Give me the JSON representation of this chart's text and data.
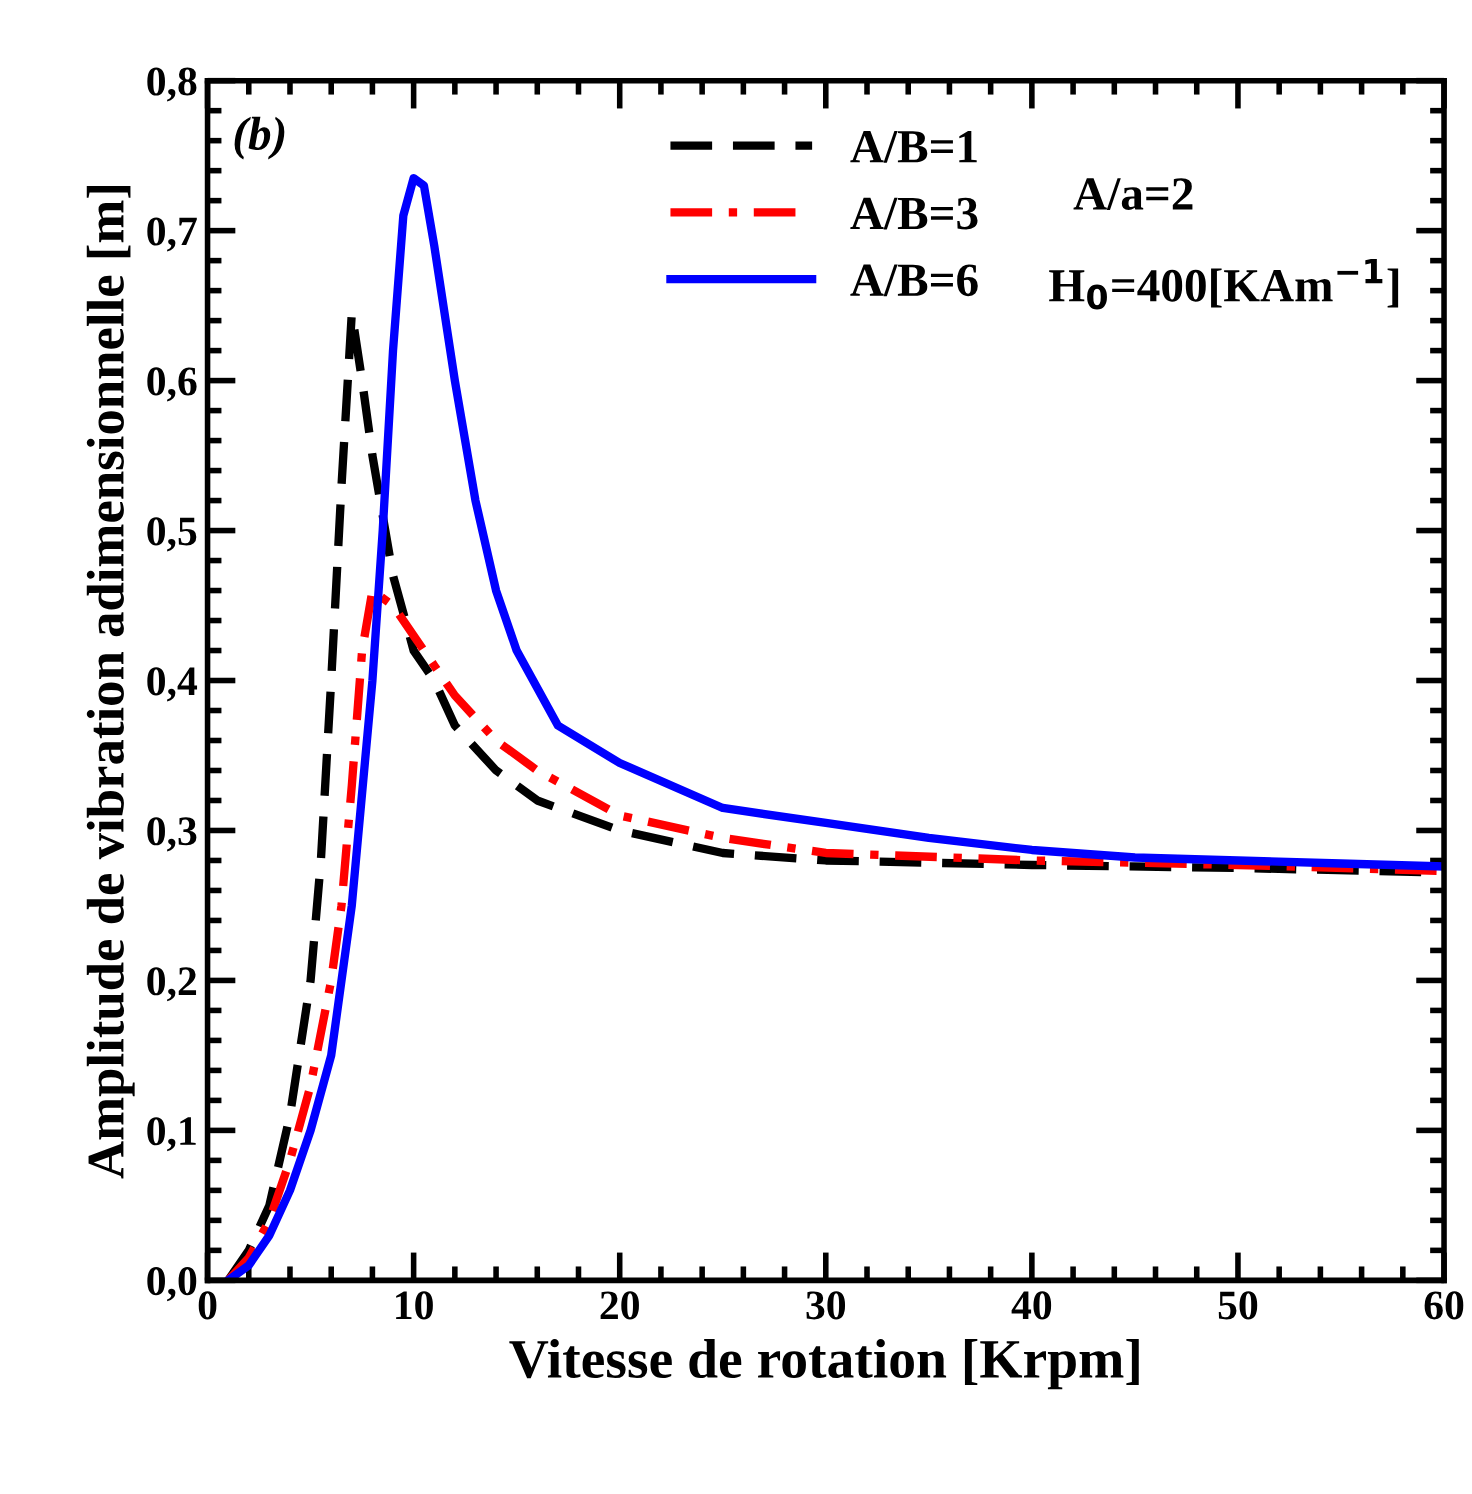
{
  "chart_data": {
    "type": "line",
    "xlabel": "Vitesse de rotation [Krpm]",
    "ylabel": "Amplitude de vibration adimensionnelle [m]",
    "annotations": [
      "(b)",
      "A/a=2",
      "H$_{0}$=400[KAm$^{−1}$]"
    ],
    "xlim": [
      0,
      60
    ],
    "xticks": [
      0,
      10,
      20,
      30,
      40,
      50,
      60
    ],
    "ylim": [
      0,
      0.8
    ],
    "yticks": [
      {
        "value": 0,
        "label": "0,0"
      },
      {
        "value": 0.1,
        "label": "0,1"
      },
      {
        "value": 0.2,
        "label": "0,2"
      },
      {
        "value": 0.3,
        "label": "0,3"
      },
      {
        "value": 0.4,
        "label": "0,4"
      },
      {
        "value": 0.5,
        "label": "0,5"
      },
      {
        "value": 0.6,
        "label": "0,6"
      },
      {
        "value": 0.7,
        "label": "0,7"
      },
      {
        "value": 0.8,
        "label": "0,8"
      }
    ],
    "legend": "top center",
    "grid": false,
    "series": [
      {
        "name": "A/B=1",
        "color": "#000000",
        "line_style": "dashed",
        "x": [
          1,
          2,
          3,
          4,
          5,
          5.5,
          6,
          6.5,
          7,
          7.5,
          8,
          9,
          10,
          11,
          12,
          14,
          16,
          20,
          25,
          30,
          40,
          50,
          60
        ],
        "values": [
          0,
          0.02,
          0.05,
          0.11,
          0.2,
          0.28,
          0.4,
          0.53,
          0.645,
          0.6,
          0.55,
          0.47,
          0.42,
          0.4,
          0.37,
          0.34,
          0.32,
          0.3,
          0.285,
          0.28,
          0.277,
          0.275,
          0.272
        ]
      },
      {
        "name": "A/B=3",
        "color": "#ff0000",
        "line_style": "dashdot",
        "x": [
          1,
          2,
          3,
          4,
          5,
          6,
          6.5,
          7,
          7.5,
          8,
          9,
          10,
          11,
          12,
          14,
          16,
          20,
          25,
          30,
          40,
          50,
          60
        ],
        "values": [
          0,
          0.015,
          0.04,
          0.08,
          0.13,
          0.2,
          0.25,
          0.33,
          0.42,
          0.46,
          0.45,
          0.43,
          0.41,
          0.39,
          0.36,
          0.34,
          0.31,
          0.295,
          0.285,
          0.28,
          0.277,
          0.273
        ]
      },
      {
        "name": "A/B=6",
        "color": "#0000ff",
        "line_style": "solid",
        "x": [
          1,
          2,
          3,
          4,
          5,
          6,
          7,
          8,
          8.5,
          9,
          9.5,
          10,
          10.5,
          11,
          12,
          13,
          14,
          15,
          17,
          20,
          25,
          30,
          35,
          40,
          45,
          50,
          55,
          60
        ],
        "values": [
          0,
          0.01,
          0.03,
          0.06,
          0.1,
          0.15,
          0.25,
          0.4,
          0.5,
          0.62,
          0.71,
          0.735,
          0.73,
          0.69,
          0.6,
          0.52,
          0.46,
          0.42,
          0.37,
          0.345,
          0.315,
          0.305,
          0.295,
          0.287,
          0.282,
          0.28,
          0.278,
          0.276
        ]
      }
    ]
  }
}
